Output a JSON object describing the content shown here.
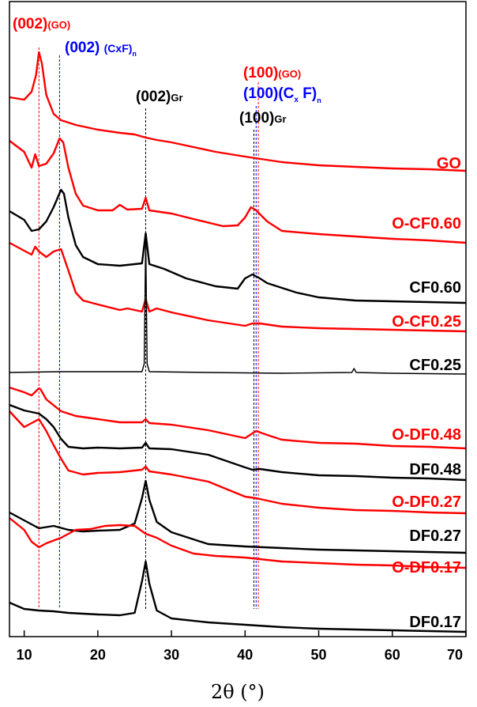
{
  "chart_data": {
    "type": "line",
    "title": "",
    "xlabel": "2θ (°)",
    "ylabel": "",
    "xlim": [
      8,
      70
    ],
    "xticks": [
      10,
      20,
      30,
      40,
      50,
      60,
      70
    ],
    "colors": {
      "red": "#ff0000",
      "black": "#000000",
      "blue": "#0000ff"
    },
    "annotations": {
      "go_002": {
        "main": "(002)",
        "sub": "(GO)",
        "color": "#ff0000",
        "x": 12.0
      },
      "cxf_002": {
        "main": "(002) ",
        "sub": "(CxF)",
        "subscript": "n",
        "color": "#0000ff",
        "x": 14.8
      },
      "gr_002": {
        "main": "(002)",
        "sub": "Gr",
        "color": "#000000",
        "x": 26.5
      },
      "go_100": {
        "main": "(100)",
        "sub": "(GO)",
        "color": "#ff0000",
        "x": 41.8
      },
      "cxf_100": {
        "main": "(100)(C",
        "subscript_x": "x",
        "tail": " F)",
        "subscript": "n",
        "color": "#0000ff",
        "x": 41.5
      },
      "gr_100": {
        "main": "(100)",
        "sub": "Gr",
        "color": "#000000",
        "x": 41.2
      }
    },
    "series": [
      {
        "name": "GO",
        "color": "#ff0000",
        "points": [
          [
            8,
            123
          ],
          [
            10,
            126
          ],
          [
            11,
            116
          ],
          [
            11.6,
            95
          ],
          [
            12,
            66
          ],
          [
            12.4,
            80
          ],
          [
            13,
            120
          ],
          [
            14,
            144
          ],
          [
            15,
            152
          ],
          [
            17,
            158
          ],
          [
            20,
            164
          ],
          [
            23,
            168
          ],
          [
            25,
            170
          ],
          [
            26.5,
            174
          ],
          [
            28,
            177
          ],
          [
            30,
            180
          ],
          [
            33,
            186
          ],
          [
            36,
            192
          ],
          [
            40,
            198
          ],
          [
            45,
            205
          ],
          [
            50,
            209
          ],
          [
            55,
            211
          ],
          [
            60,
            213
          ],
          [
            65,
            214
          ],
          [
            70,
            216
          ]
        ]
      },
      {
        "name": "O-CF0.60",
        "color": "#ff0000",
        "points": [
          [
            8,
            178
          ],
          [
            10,
            192
          ],
          [
            11,
            212
          ],
          [
            11.5,
            195
          ],
          [
            12,
            210
          ],
          [
            13,
            207
          ],
          [
            14,
            194
          ],
          [
            14.8,
            175
          ],
          [
            15.3,
            180
          ],
          [
            16,
            212
          ],
          [
            17,
            245
          ],
          [
            18,
            260
          ],
          [
            20,
            266
          ],
          [
            22,
            266
          ],
          [
            23,
            259
          ],
          [
            24,
            265
          ],
          [
            26,
            264
          ],
          [
            26.5,
            250
          ],
          [
            27,
            266
          ],
          [
            30,
            270
          ],
          [
            33,
            277
          ],
          [
            37,
            286
          ],
          [
            39,
            285
          ],
          [
            40,
            275
          ],
          [
            40.8,
            262
          ],
          [
            41.5,
            266
          ],
          [
            43,
            280
          ],
          [
            45,
            292
          ],
          [
            50,
            296
          ],
          [
            55,
            299
          ],
          [
            60,
            302
          ],
          [
            65,
            304
          ],
          [
            70,
            307
          ]
        ]
      },
      {
        "name": "CF0.60",
        "color": "#000000",
        "points": [
          [
            8,
            267
          ],
          [
            10,
            278
          ],
          [
            11,
            292
          ],
          [
            12,
            290
          ],
          [
            13,
            280
          ],
          [
            14,
            262
          ],
          [
            15,
            240
          ],
          [
            15.4,
            245
          ],
          [
            16,
            275
          ],
          [
            17,
            310
          ],
          [
            18,
            325
          ],
          [
            20,
            334
          ],
          [
            23,
            336
          ],
          [
            26,
            333
          ],
          [
            26.5,
            295
          ],
          [
            27,
            334
          ],
          [
            29,
            340
          ],
          [
            32,
            352
          ],
          [
            36,
            362
          ],
          [
            39,
            365
          ],
          [
            40,
            352
          ],
          [
            41,
            347
          ],
          [
            42,
            352
          ],
          [
            43,
            358
          ],
          [
            45,
            364
          ],
          [
            47,
            370
          ],
          [
            50,
            376
          ],
          [
            55,
            380
          ],
          [
            60,
            381
          ],
          [
            65,
            382
          ],
          [
            70,
            383
          ]
        ]
      },
      {
        "name": "O-CF0.25",
        "color": "#ff0000",
        "points": [
          [
            8,
            307
          ],
          [
            10,
            317
          ],
          [
            11,
            322
          ],
          [
            11.5,
            312
          ],
          [
            12,
            318
          ],
          [
            13,
            325
          ],
          [
            14,
            318
          ],
          [
            15,
            315
          ],
          [
            16,
            342
          ],
          [
            17,
            370
          ],
          [
            18,
            380
          ],
          [
            20,
            385
          ],
          [
            23,
            392
          ],
          [
            24,
            390
          ],
          [
            26,
            394
          ],
          [
            26.5,
            378
          ],
          [
            27,
            394
          ],
          [
            28,
            390
          ],
          [
            30,
            395
          ],
          [
            35,
            405
          ],
          [
            40,
            412
          ],
          [
            41,
            409
          ],
          [
            42,
            409
          ],
          [
            45,
            413
          ],
          [
            50,
            415
          ],
          [
            55,
            416
          ],
          [
            60,
            417
          ],
          [
            65,
            418
          ],
          [
            70,
            419
          ]
        ]
      },
      {
        "name": "CF0.25",
        "color": "#000000",
        "thin": true,
        "points": [
          [
            8,
            471
          ],
          [
            15,
            470
          ],
          [
            20,
            470
          ],
          [
            26,
            470
          ],
          [
            26.3,
            460
          ],
          [
            26.5,
            300
          ],
          [
            26.7,
            460
          ],
          [
            27,
            470
          ],
          [
            35,
            471
          ],
          [
            45,
            472
          ],
          [
            54.5,
            471
          ],
          [
            54.8,
            466
          ],
          [
            55.1,
            471
          ],
          [
            60,
            472
          ],
          [
            70,
            473
          ]
        ]
      },
      {
        "name": "O-DF0.48",
        "color": "#ff0000",
        "points": [
          [
            8,
            490
          ],
          [
            10,
            496
          ],
          [
            11,
            500
          ],
          [
            12,
            491
          ],
          [
            12.2,
            492
          ],
          [
            13,
            505
          ],
          [
            15,
            520
          ],
          [
            17,
            526
          ],
          [
            20,
            530
          ],
          [
            23,
            534
          ],
          [
            26,
            534
          ],
          [
            26.5,
            530
          ],
          [
            27,
            535
          ],
          [
            30,
            537
          ],
          [
            35,
            544
          ],
          [
            40,
            554
          ],
          [
            41.5,
            545
          ],
          [
            43,
            550
          ],
          [
            45,
            556
          ],
          [
            50,
            560
          ],
          [
            55,
            561
          ],
          [
            60,
            564
          ],
          [
            65,
            565
          ],
          [
            70,
            567
          ]
        ]
      },
      {
        "name": "DF0.48",
        "color": "#000000",
        "points": [
          [
            8,
            512
          ],
          [
            10,
            519
          ],
          [
            12,
            523
          ],
          [
            13,
            530
          ],
          [
            14,
            540
          ],
          [
            15,
            555
          ],
          [
            16,
            565
          ],
          [
            18,
            567
          ],
          [
            20,
            566
          ],
          [
            23,
            567
          ],
          [
            26,
            566
          ],
          [
            26.5,
            560
          ],
          [
            27,
            567
          ],
          [
            30,
            568
          ],
          [
            35,
            575
          ],
          [
            40,
            591
          ],
          [
            41,
            594
          ],
          [
            42,
            593
          ],
          [
            45,
            597
          ],
          [
            50,
            601
          ],
          [
            55,
            602
          ],
          [
            60,
            604
          ],
          [
            65,
            605
          ],
          [
            70,
            607
          ]
        ]
      },
      {
        "name": "O-DF0.27",
        "color": "#ff0000",
        "points": [
          [
            8,
            520
          ],
          [
            10,
            540
          ],
          [
            11,
            535
          ],
          [
            12,
            530
          ],
          [
            13,
            545
          ],
          [
            14,
            563
          ],
          [
            15,
            580
          ],
          [
            16,
            595
          ],
          [
            18,
            600
          ],
          [
            20,
            598
          ],
          [
            23,
            597
          ],
          [
            26,
            594
          ],
          [
            26.5,
            590
          ],
          [
            27,
            596
          ],
          [
            30,
            600
          ],
          [
            35,
            609
          ],
          [
            40,
            628
          ],
          [
            41.5,
            630
          ],
          [
            43,
            633
          ],
          [
            45,
            637
          ],
          [
            50,
            642
          ],
          [
            55,
            645
          ],
          [
            60,
            646
          ],
          [
            65,
            648
          ],
          [
            70,
            649
          ]
        ]
      },
      {
        "name": "DF0.27",
        "color": "#000000",
        "points": [
          [
            8,
            648
          ],
          [
            10,
            658
          ],
          [
            12,
            668
          ],
          [
            14,
            665
          ],
          [
            16,
            670
          ],
          [
            18,
            672
          ],
          [
            20,
            671
          ],
          [
            23,
            670
          ],
          [
            25,
            662
          ],
          [
            26,
            630
          ],
          [
            26.5,
            608
          ],
          [
            27,
            632
          ],
          [
            28,
            660
          ],
          [
            30,
            673
          ],
          [
            35,
            688
          ],
          [
            40,
            691
          ],
          [
            45,
            693
          ],
          [
            50,
            695
          ],
          [
            55,
            696
          ],
          [
            60,
            697
          ],
          [
            65,
            698
          ],
          [
            70,
            699
          ]
        ]
      },
      {
        "name": "O-DF0.17",
        "color": "#ff0000",
        "points": [
          [
            8,
            655
          ],
          [
            10,
            670
          ],
          [
            11,
            685
          ],
          [
            12,
            692
          ],
          [
            13,
            687
          ],
          [
            15,
            680
          ],
          [
            17,
            670
          ],
          [
            19,
            669
          ],
          [
            21,
            665
          ],
          [
            23,
            664
          ],
          [
            25,
            665
          ],
          [
            26.5,
            675
          ],
          [
            28,
            680
          ],
          [
            30,
            690
          ],
          [
            33,
            700
          ],
          [
            36,
            703
          ],
          [
            40,
            705
          ],
          [
            45,
            710
          ],
          [
            50,
            712
          ],
          [
            55,
            714
          ],
          [
            60,
            715
          ],
          [
            65,
            717
          ],
          [
            70,
            718
          ]
        ]
      },
      {
        "name": "DF0.17",
        "color": "#000000",
        "points": [
          [
            8,
            762
          ],
          [
            10,
            770
          ],
          [
            12,
            772
          ],
          [
            14,
            773
          ],
          [
            16,
            775
          ],
          [
            18,
            776
          ],
          [
            20,
            777
          ],
          [
            23,
            778
          ],
          [
            25,
            775
          ],
          [
            26,
            735
          ],
          [
            26.5,
            710
          ],
          [
            27,
            738
          ],
          [
            28,
            772
          ],
          [
            30,
            782
          ],
          [
            35,
            787
          ],
          [
            40,
            790
          ],
          [
            45,
            793
          ],
          [
            50,
            795
          ],
          [
            55,
            796
          ],
          [
            60,
            797
          ],
          [
            65,
            798
          ],
          [
            70,
            799
          ]
        ]
      }
    ],
    "labels": [
      {
        "text": "GO",
        "color": "#ff0000"
      },
      {
        "text": "O-CF0.60",
        "color": "#ff0000"
      },
      {
        "text": "CF0.60",
        "color": "#000000"
      },
      {
        "text": "O-CF0.25",
        "color": "#ff0000"
      },
      {
        "text": "CF0.25",
        "color": "#000000"
      },
      {
        "text": "O-DF0.48",
        "color": "#ff0000"
      },
      {
        "text": "DF0.48",
        "color": "#000000"
      },
      {
        "text": "O-DF0.27",
        "color": "#ff0000"
      },
      {
        "text": "DF0.27",
        "color": "#000000"
      },
      {
        "text": "O-DF0.17",
        "color": "#ff0000"
      },
      {
        "text": "DF0.17",
        "color": "#000000"
      }
    ],
    "reference_lines": [
      {
        "name": "go-002-ref-line",
        "x": 12.0,
        "color": "#ff0000"
      },
      {
        "name": "cxf-002-ref-line",
        "x": 14.8,
        "color": "#0000ff"
      },
      {
        "name": "gr-002-ref-line",
        "x": 26.5,
        "color": "#000000"
      },
      {
        "name": "gr-100-ref-line",
        "x": 41.2,
        "color": "#000000"
      },
      {
        "name": "cxf-100-ref-line",
        "x": 41.5,
        "color": "#0000ff"
      },
      {
        "name": "go-100-ref-line",
        "x": 41.8,
        "color": "#ff0000"
      }
    ]
  }
}
